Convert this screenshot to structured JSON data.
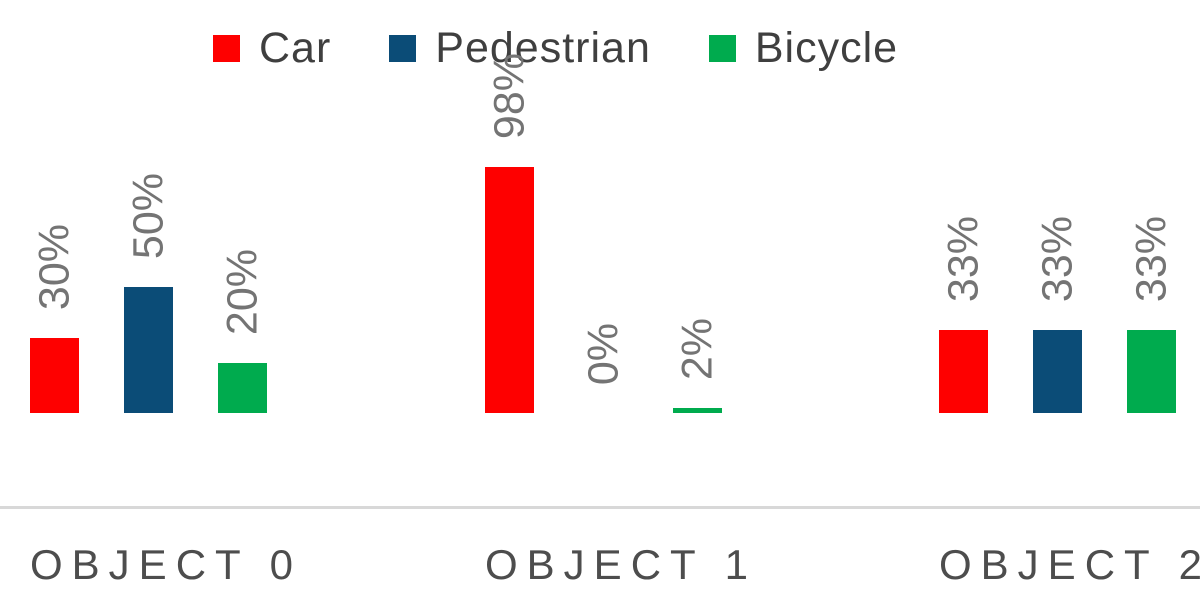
{
  "chart_data": {
    "type": "bar",
    "title": "",
    "categories": [
      "OBJECT 0",
      "OBJECT 1",
      "OBJECT 2"
    ],
    "series": [
      {
        "name": "Car",
        "color": "#FE0000",
        "values": [
          30,
          98,
          33
        ],
        "labels": [
          "30%",
          "98%",
          "33%"
        ]
      },
      {
        "name": "Pedestrian",
        "color": "#0B4C77",
        "values": [
          50,
          0,
          33
        ],
        "labels": [
          "50%",
          "0%",
          "33%"
        ]
      },
      {
        "name": "Bicycle",
        "color": "#00AB4E",
        "values": [
          20,
          2,
          33
        ],
        "labels": [
          "20%",
          "2%",
          "33%"
        ]
      }
    ],
    "unit": "%",
    "ylim": [
      0,
      100
    ],
    "grid": false,
    "legend_position": "top",
    "data_label_rotation": -90,
    "axis_line_color": "#D8D8D8",
    "legend_text_color": "#3F3F3F",
    "category_label_color": "#4D4D4D",
    "data_label_color": "#747474",
    "background": "#FFFFFF"
  }
}
